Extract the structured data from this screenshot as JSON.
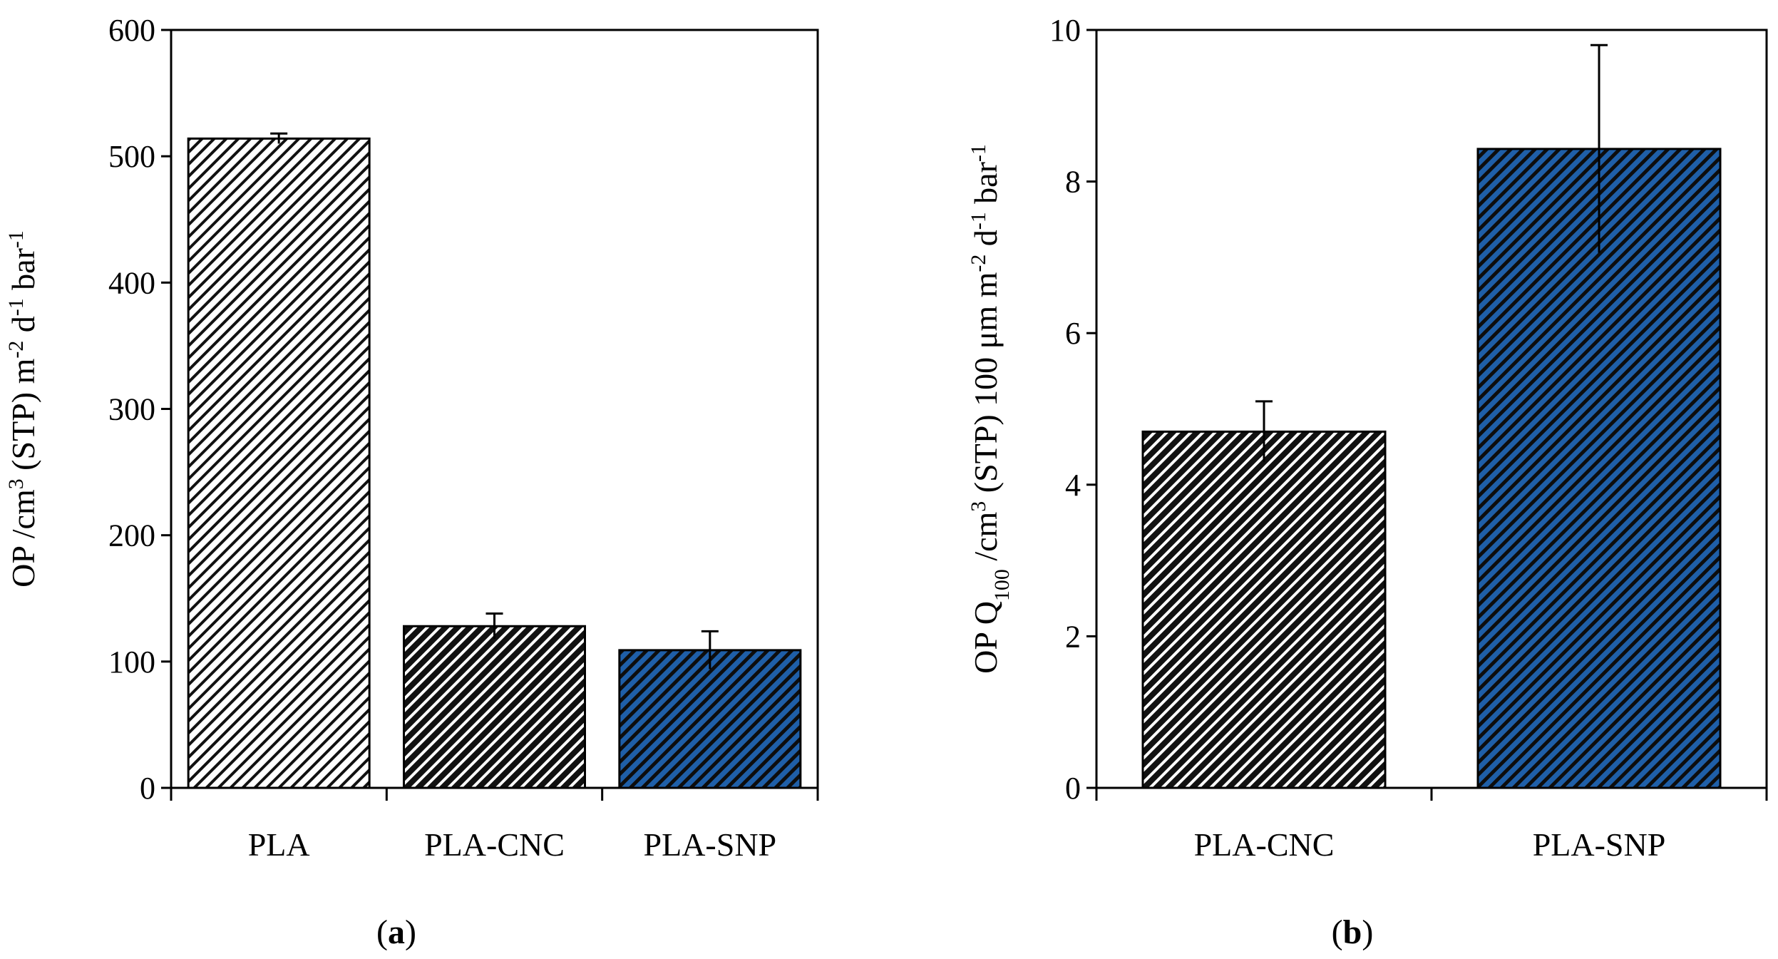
{
  "chart_data": [
    {
      "type": "bar",
      "panel_label": "a",
      "categories": [
        "PLA",
        "PLA-CNC",
        "PLA-SNP"
      ],
      "values": [
        514,
        128,
        109
      ],
      "errors": [
        4,
        10,
        15
      ],
      "ylabel": {
        "parts": [
          {
            "t": "OP /cm"
          },
          {
            "t": "3",
            "sup": true
          },
          {
            "t": " (STP) m"
          },
          {
            "t": "-2",
            "sup": true
          },
          {
            "t": " d"
          },
          {
            "t": "-1",
            "sup": true
          },
          {
            "t": " bar"
          },
          {
            "t": "-1",
            "sup": true
          }
        ]
      },
      "ylim": [
        0,
        600
      ],
      "yticks": [
        0,
        100,
        200,
        300,
        400,
        500,
        600
      ],
      "grid": false,
      "bar_styles": [
        "white-hatch",
        "black-hatch",
        "blue-hatch"
      ]
    },
    {
      "type": "bar",
      "panel_label": "b",
      "categories": [
        "PLA-CNC",
        "PLA-SNP"
      ],
      "values": [
        4.7,
        8.43
      ],
      "errors": [
        0.4,
        1.37
      ],
      "ylabel": {
        "parts": [
          {
            "t": "OP Q"
          },
          {
            "t": "100",
            "sub": true
          },
          {
            "t": " /cm"
          },
          {
            "t": "3",
            "sup": true
          },
          {
            "t": " (STP) 100 μm m"
          },
          {
            "t": "-2",
            "sup": true
          },
          {
            "t": " d"
          },
          {
            "t": "-1",
            "sup": true
          },
          {
            "t": " bar"
          },
          {
            "t": "-1",
            "sup": true
          }
        ]
      },
      "ylim": [
        0,
        10
      ],
      "yticks": [
        0,
        2,
        4,
        6,
        8,
        10
      ],
      "grid": false,
      "bar_styles": [
        "black-hatch",
        "blue-hatch"
      ]
    }
  ],
  "colors": {
    "axis": "#000000",
    "hatch_dark": "#111111",
    "hatch_light": "#ffffff",
    "hatch_blue": "#1f5fa8"
  }
}
